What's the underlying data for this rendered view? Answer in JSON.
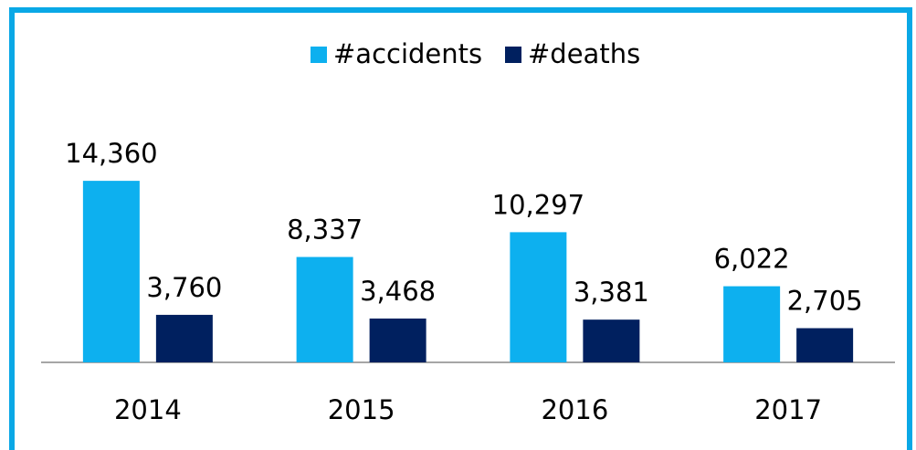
{
  "chart_data": {
    "type": "bar",
    "categories": [
      "2014",
      "2015",
      "2016",
      "2017"
    ],
    "series": [
      {
        "name": "#accidents",
        "color": "#0db0ef",
        "values": [
          14360,
          8337,
          10297,
          6022
        ],
        "value_labels": [
          "14,360",
          "8,337",
          "10,297",
          "6,022"
        ]
      },
      {
        "name": "#deaths",
        "color": "#00205f",
        "values": [
          3760,
          3468,
          3381,
          2705
        ],
        "value_labels": [
          "3,760",
          "3,468",
          "3,381",
          "2,705"
        ]
      }
    ],
    "ylim": [
      0,
      20000
    ],
    "legend": "top"
  }
}
